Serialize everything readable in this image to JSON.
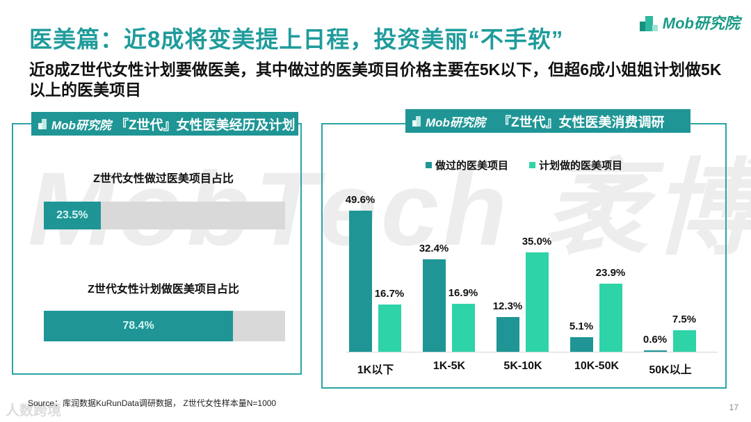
{
  "header": {
    "title": "医美篇：近8成将变美提上日程，投资美丽“不手软”",
    "subtitle": "近8成Z世代女性计划要做医美，其中做过的医美项目价格主要在5K以下，但超6成小姐姐计划做5K以上的医美项目",
    "logo_text": "Mob研究院"
  },
  "watermark": {
    "text": "MobTech 袤博",
    "bottom_left": "人数跨境"
  },
  "left_panel": {
    "logo_text": "Mob研究院",
    "title": "『Z世代』女性医美经历及计划",
    "bars": [
      {
        "title": "Z世代女性做过医美项目占比",
        "value": 23.5,
        "label": "23.5%"
      },
      {
        "title": "Z世代女性计划做医美项目占比",
        "value": 78.4,
        "label": "78.4%"
      }
    ]
  },
  "right_panel": {
    "logo_text": "Mob研究院",
    "title": "『Z世代』女性医美消费调研"
  },
  "colors": {
    "teal": "#1f9595",
    "mint": "#2fd3a8",
    "gray_track": "#d9d9d9",
    "title": "#1f9b9b"
  },
  "chart_data": [
    {
      "type": "bar",
      "title": "『Z世代』女性医美经历及计划",
      "orientation": "horizontal",
      "categories": [
        "Z世代女性做过医美项目占比",
        "Z世代女性计划做医美项目占比"
      ],
      "values": [
        23.5,
        78.4
      ],
      "unit": "%",
      "ylim": [
        0,
        100
      ]
    },
    {
      "type": "bar",
      "title": "『Z世代』女性医美消费调研",
      "categories": [
        "1K以下",
        "1K-5K",
        "5K-10K",
        "10K-50K",
        "50K以上"
      ],
      "series": [
        {
          "name": "做过的医美项目",
          "color": "#1f9595",
          "values": [
            49.6,
            32.4,
            12.3,
            5.1,
            0.6
          ]
        },
        {
          "name": "计划做的医美项目",
          "color": "#2fd3a8",
          "values": [
            16.7,
            16.9,
            35.0,
            23.9,
            7.5
          ]
        }
      ],
      "unit": "%",
      "legend_position": "top",
      "grid": false,
      "xlabel": "",
      "ylabel": ""
    }
  ],
  "footer": {
    "source": "Source：库润数据KuRunData调研数据， Z世代女性样本量N=1000",
    "page_number": "17"
  }
}
